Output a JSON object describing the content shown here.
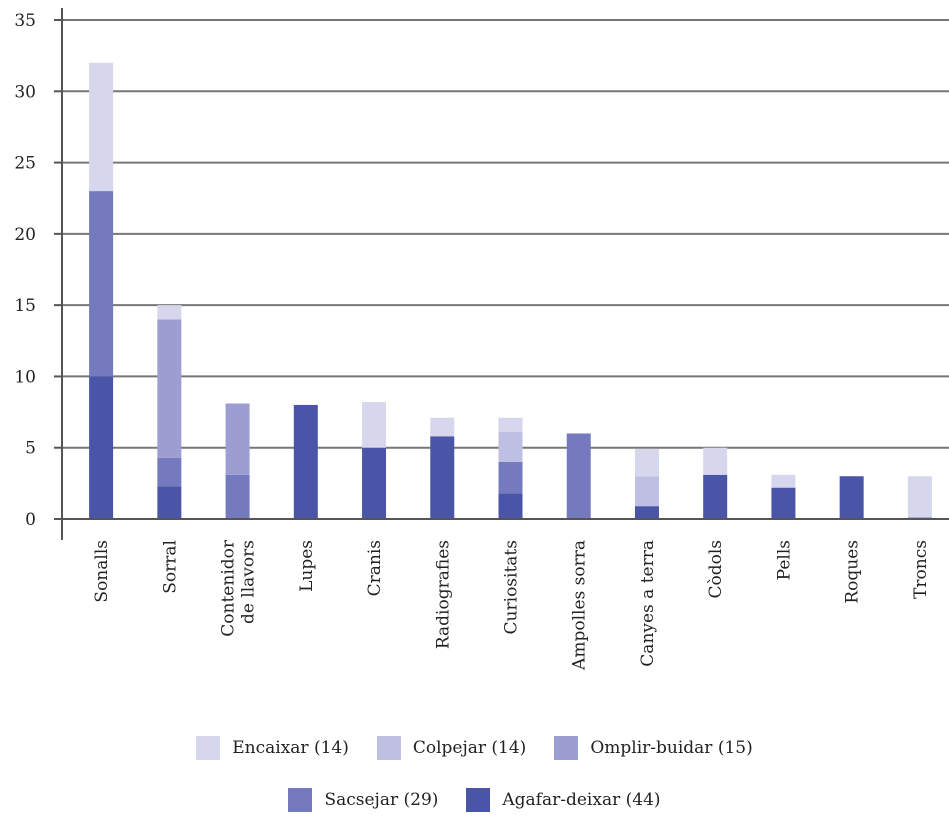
{
  "chart_data": {
    "type": "bar",
    "stacked": true,
    "categories": [
      "Sonalls",
      "Sorral",
      "Contenidor\nde llavors",
      "Lupes",
      "Cranis",
      "Radiografies",
      "Curiositats",
      "Ampolles sorra",
      "Canyes a terra",
      "Còdols",
      "Pells",
      "Roques",
      "Troncs"
    ],
    "ylim": [
      0,
      35
    ],
    "yticks": [
      "0",
      "5",
      "10",
      "15",
      "20",
      "25",
      "30",
      "35"
    ],
    "grid": "horizontal",
    "legend_placement": "bottom",
    "series": [
      {
        "name": "Agafar-deixar (44)",
        "color": "#4a55a8",
        "values": [
          10,
          2.3,
          0,
          8,
          5,
          5.8,
          1.8,
          0,
          0.9,
          3.1,
          2.2,
          3,
          0.1
        ]
      },
      {
        "name": "Sacsejar (29)",
        "color": "#7579bd",
        "values": [
          13,
          2,
          3.1,
          0,
          0,
          0,
          2.2,
          6,
          0,
          0,
          0,
          0,
          0
        ]
      },
      {
        "name": "Omplir-buidar (15)",
        "color": "#9c9dd0",
        "values": [
          0,
          9.7,
          5,
          0,
          0,
          0,
          0,
          0,
          0,
          0,
          0,
          0,
          0
        ]
      },
      {
        "name": "Colpejar (14)",
        "color": "#bebfe3",
        "values": [
          0,
          0,
          0,
          0,
          0,
          0,
          2.1,
          0,
          2.1,
          0,
          0,
          0,
          0
        ]
      },
      {
        "name": "Encaixar (14)",
        "color": "#d6d6ec",
        "values": [
          9,
          1,
          0,
          0,
          3.2,
          1.3,
          1,
          0,
          1.9,
          1.9,
          0.9,
          0,
          2.9
        ]
      }
    ],
    "legend_rows": [
      [
        "Encaixar (14)",
        "Colpejar (14)",
        "Omplir-buidar (15)"
      ],
      [
        "Sacsejar (29)",
        "Agafar-deixar (44)"
      ]
    ]
  },
  "legend": {
    "row1": [
      {
        "label": "Encaixar (14)",
        "color": "#d6d6ec"
      },
      {
        "label": "Colpejar (14)",
        "color": "#bebfe3"
      },
      {
        "label": "Omplir-buidar (15)",
        "color": "#9c9dd0"
      }
    ],
    "row2": [
      {
        "label": "Sacsejar (29)",
        "color": "#7579bd"
      },
      {
        "label": "Agafar-deixar (44)",
        "color": "#4a55a8"
      }
    ]
  }
}
